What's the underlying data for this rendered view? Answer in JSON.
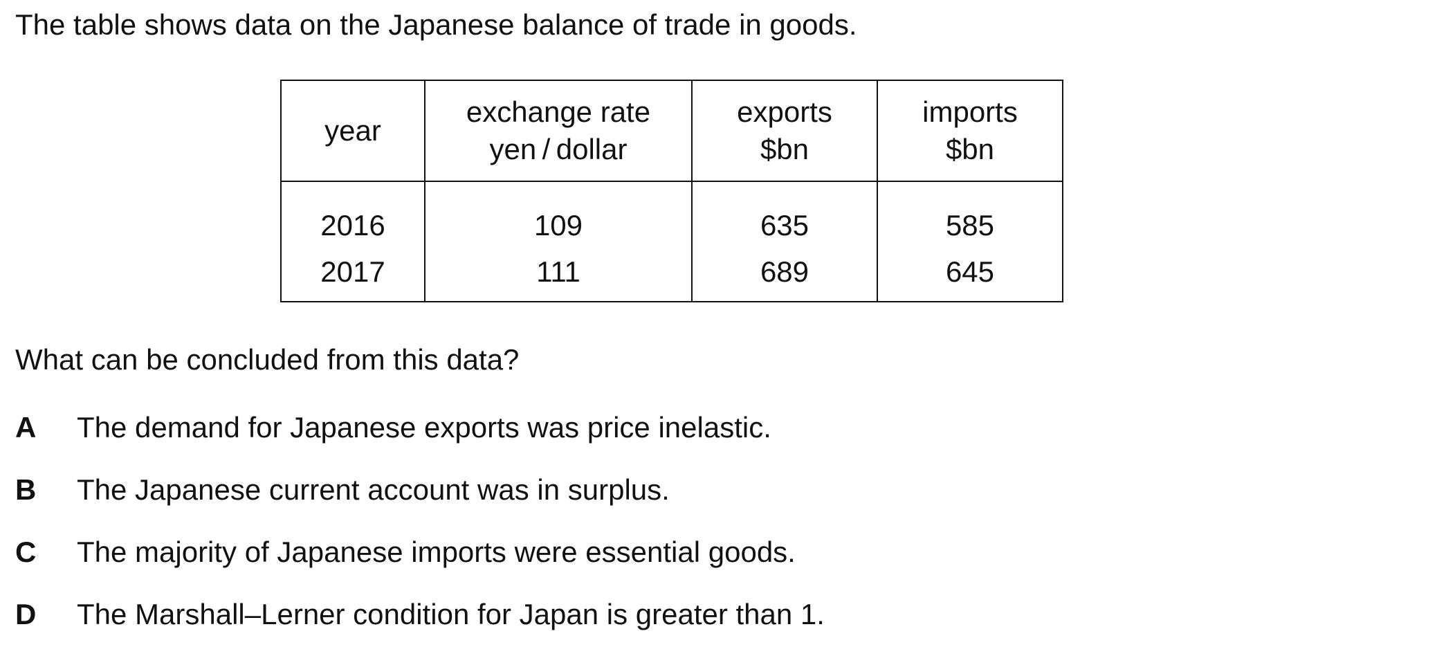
{
  "intro": "The table shows data on the Japanese balance of trade in goods.",
  "table": {
    "headers": [
      {
        "line1": "year",
        "line2": ""
      },
      {
        "line1": "exchange rate",
        "line2": "yen / dollar"
      },
      {
        "line1": "exports",
        "line2": "$bn"
      },
      {
        "line1": "imports",
        "line2": "$bn"
      }
    ],
    "rows": [
      [
        "2016",
        "109",
        "635",
        "585"
      ],
      [
        "2017",
        "111",
        "689",
        "645"
      ]
    ]
  },
  "question": "What can be concluded from this data?",
  "options": [
    {
      "letter": "A",
      "text": "The demand for Japanese exports was price inelastic."
    },
    {
      "letter": "B",
      "text": "The Japanese current account was in surplus."
    },
    {
      "letter": "C",
      "text": "The majority of Japanese imports were essential goods."
    },
    {
      "letter": "D",
      "text": "The Marshall–Lerner condition for Japan is greater than 1."
    }
  ]
}
